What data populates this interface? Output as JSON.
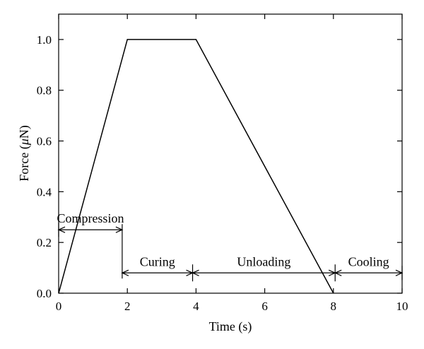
{
  "chart_data": {
    "type": "line",
    "xlabel": "Time (s)",
    "ylabel_prefix": "Force (",
    "ylabel_unit_symbol": "μ",
    "ylabel_suffix": "N)",
    "xlim": [
      0,
      10
    ],
    "ylim": [
      0,
      1.1
    ],
    "x_ticks": [
      "0",
      "2",
      "4",
      "6",
      "8",
      "10"
    ],
    "y_ticks": [
      "0.0",
      "0.2",
      "0.4",
      "0.6",
      "0.8",
      "1.0"
    ],
    "grid": false,
    "series": [
      {
        "x": [
          0,
          2,
          4,
          8
        ],
        "y": [
          0,
          1.0,
          1.0,
          0
        ]
      }
    ],
    "annotations": [
      {
        "label": "Compression",
        "x_start": 0,
        "x_end": 1.85,
        "y": 0.25
      },
      {
        "label": "Curing",
        "x_start": 1.85,
        "x_end": 3.9,
        "y": 0.08
      },
      {
        "label": "Unloading",
        "x_start": 3.9,
        "x_end": 8.05,
        "y": 0.08
      },
      {
        "label": "Cooling",
        "x_start": 8.05,
        "x_end": 10,
        "y": 0.08
      }
    ],
    "colors": {
      "line": "#000000"
    }
  }
}
